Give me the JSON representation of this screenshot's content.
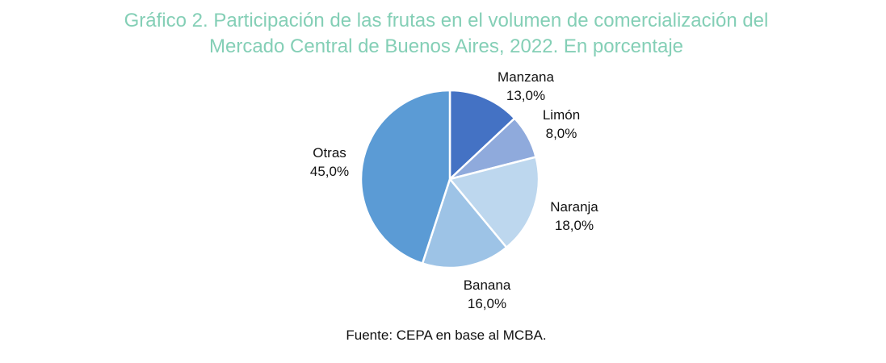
{
  "title_line1": "Gráfico 2. Participación de las frutas en el volumen de comercialización del",
  "title_line2": "Mercado Central de Buenos Aires, 2022. En porcentaje",
  "source": "Fuente: CEPA en base al MCBA.",
  "colors": {
    "title": "#84cfb6",
    "text": "#111111",
    "slice_border": "#ffffff"
  },
  "chart_data": {
    "type": "pie",
    "start_angle_deg": 0,
    "direction": "clockwise",
    "labels_position": "outside",
    "slices": [
      {
        "name": "Manzana",
        "value": 13.0,
        "label": "13,0%",
        "color": "#4472c4"
      },
      {
        "name": "Limón",
        "value": 8.0,
        "label": "8,0%",
        "color": "#8faadc"
      },
      {
        "name": "Naranja",
        "value": 18.0,
        "label": "18,0%",
        "color": "#bdd7ee"
      },
      {
        "name": "Banana",
        "value": 16.0,
        "label": "16,0%",
        "color": "#9dc3e6"
      },
      {
        "name": "Otras",
        "value": 45.0,
        "label": "45,0%",
        "color": "#5b9bd5"
      }
    ]
  }
}
